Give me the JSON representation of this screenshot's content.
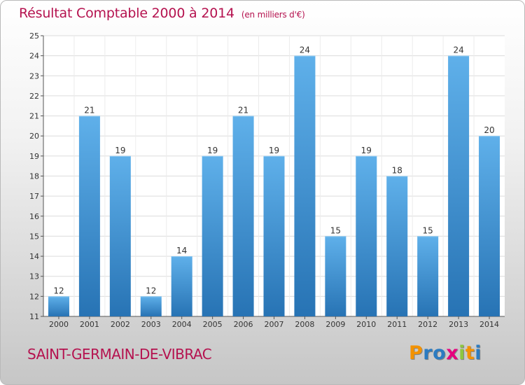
{
  "chart_data": {
    "type": "bar",
    "title": "Résultat Comptable 2000 à 2014",
    "unit_note": "(en milliers d'€)",
    "categories": [
      "2000",
      "2001",
      "2002",
      "2003",
      "2004",
      "2005",
      "2006",
      "2007",
      "2008",
      "2009",
      "2010",
      "2011",
      "2012",
      "2013",
      "2014"
    ],
    "values": [
      12,
      21,
      19,
      12,
      14,
      19,
      21,
      19,
      24,
      15,
      19,
      18,
      15,
      24,
      20
    ],
    "ylim": [
      11,
      25
    ],
    "yticks": [
      11,
      12,
      13,
      14,
      15,
      16,
      17,
      18,
      19,
      20,
      21,
      22,
      23,
      24,
      25
    ],
    "grid": true,
    "xlabel": "",
    "ylabel": ""
  },
  "location": "SAINT-GERMAIN-DE-VIBRAC",
  "logo": {
    "text": "Proxiti",
    "letters": [
      "P",
      "r",
      "o",
      "x",
      "i",
      "t",
      "i"
    ],
    "colors": [
      "#f39200",
      "#2b7bc1",
      "#2b7bc1",
      "#e6007e",
      "#8dc63f",
      "#f39200",
      "#2b7bc1"
    ]
  },
  "colors": {
    "title": "#b5124f",
    "bar_light": "#5fb0ea",
    "bar_dark": "#2773b4",
    "grid": "#dcdcdc"
  }
}
